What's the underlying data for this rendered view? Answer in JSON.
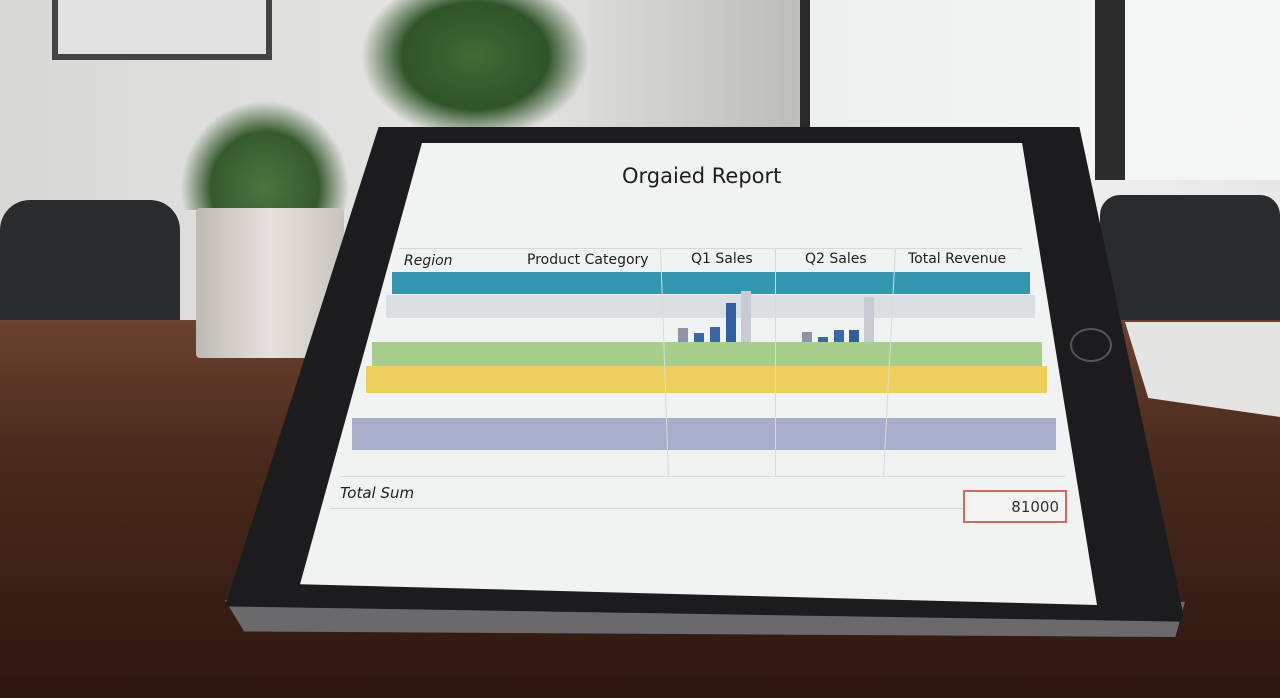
{
  "report": {
    "title": "Orgaied Report",
    "columns": [
      "Region",
      "Product Category",
      "Q1 Sales",
      "Q2 Sales",
      "Total Revenue"
    ],
    "row_colors": [
      "#3596b0",
      "#dcdfe1",
      "#a7cf8a",
      "#efcf5c",
      "#a8adca"
    ],
    "total_label": "Total Sum",
    "total_value": "81000",
    "total_border_color": "#d06a5a"
  }
}
